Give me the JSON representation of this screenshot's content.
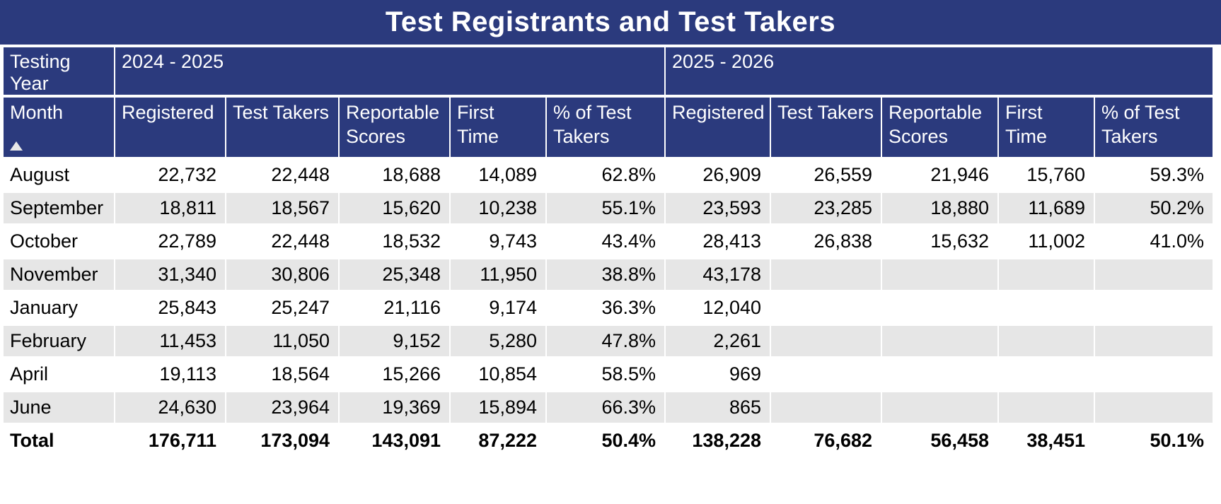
{
  "title": "Test Registrants and Test Takers",
  "colors": {
    "header_navy": "#2B3A7D",
    "stripe_gray": "#E6E6E6",
    "header_text": "#FFFFFF",
    "body_text": "#000000"
  },
  "table": {
    "corner_label": "Testing Year",
    "sort_icon": "ascending-triangle"
  },
  "chart_data": {
    "type": "table",
    "title": "Test Registrants and Test Takers",
    "row_label_header": "Month",
    "group_headers": [
      "2024 - 2025",
      "2025 - 2026"
    ],
    "columns_per_group": [
      "Registered",
      "Test Takers",
      "Reportable Scores",
      "First Time",
      "% of Test Takers"
    ],
    "rows": [
      {
        "month": "August",
        "y1": [
          "22,732",
          "22,448",
          "18,688",
          "14,089",
          "62.8%"
        ],
        "y2": [
          "26,909",
          "26,559",
          "21,946",
          "15,760",
          "59.3%"
        ]
      },
      {
        "month": "September",
        "y1": [
          "18,811",
          "18,567",
          "15,620",
          "10,238",
          "55.1%"
        ],
        "y2": [
          "23,593",
          "23,285",
          "18,880",
          "11,689",
          "50.2%"
        ]
      },
      {
        "month": "October",
        "y1": [
          "22,789",
          "22,448",
          "18,532",
          "9,743",
          "43.4%"
        ],
        "y2": [
          "28,413",
          "26,838",
          "15,632",
          "11,002",
          "41.0%"
        ]
      },
      {
        "month": "November",
        "y1": [
          "31,340",
          "30,806",
          "25,348",
          "11,950",
          "38.8%"
        ],
        "y2": [
          "43,178",
          "",
          "",
          "",
          ""
        ]
      },
      {
        "month": "January",
        "y1": [
          "25,843",
          "25,247",
          "21,116",
          "9,174",
          "36.3%"
        ],
        "y2": [
          "12,040",
          "",
          "",
          "",
          ""
        ]
      },
      {
        "month": "February",
        "y1": [
          "11,453",
          "11,050",
          "9,152",
          "5,280",
          "47.8%"
        ],
        "y2": [
          "2,261",
          "",
          "",
          "",
          ""
        ]
      },
      {
        "month": "April",
        "y1": [
          "19,113",
          "18,564",
          "15,266",
          "10,854",
          "58.5%"
        ],
        "y2": [
          "969",
          "",
          "",
          "",
          ""
        ]
      },
      {
        "month": "June",
        "y1": [
          "24,630",
          "23,964",
          "19,369",
          "15,894",
          "66.3%"
        ],
        "y2": [
          "865",
          "",
          "",
          "",
          ""
        ]
      }
    ],
    "total": {
      "month": "Total",
      "y1": [
        "176,711",
        "173,094",
        "143,091",
        "87,222",
        "50.4%"
      ],
      "y2": [
        "138,228",
        "76,682",
        "56,458",
        "38,451",
        "50.1%"
      ]
    },
    "layout": {
      "zebra_striping": true,
      "striped_rows": [
        "September",
        "November",
        "February",
        "June"
      ]
    }
  }
}
